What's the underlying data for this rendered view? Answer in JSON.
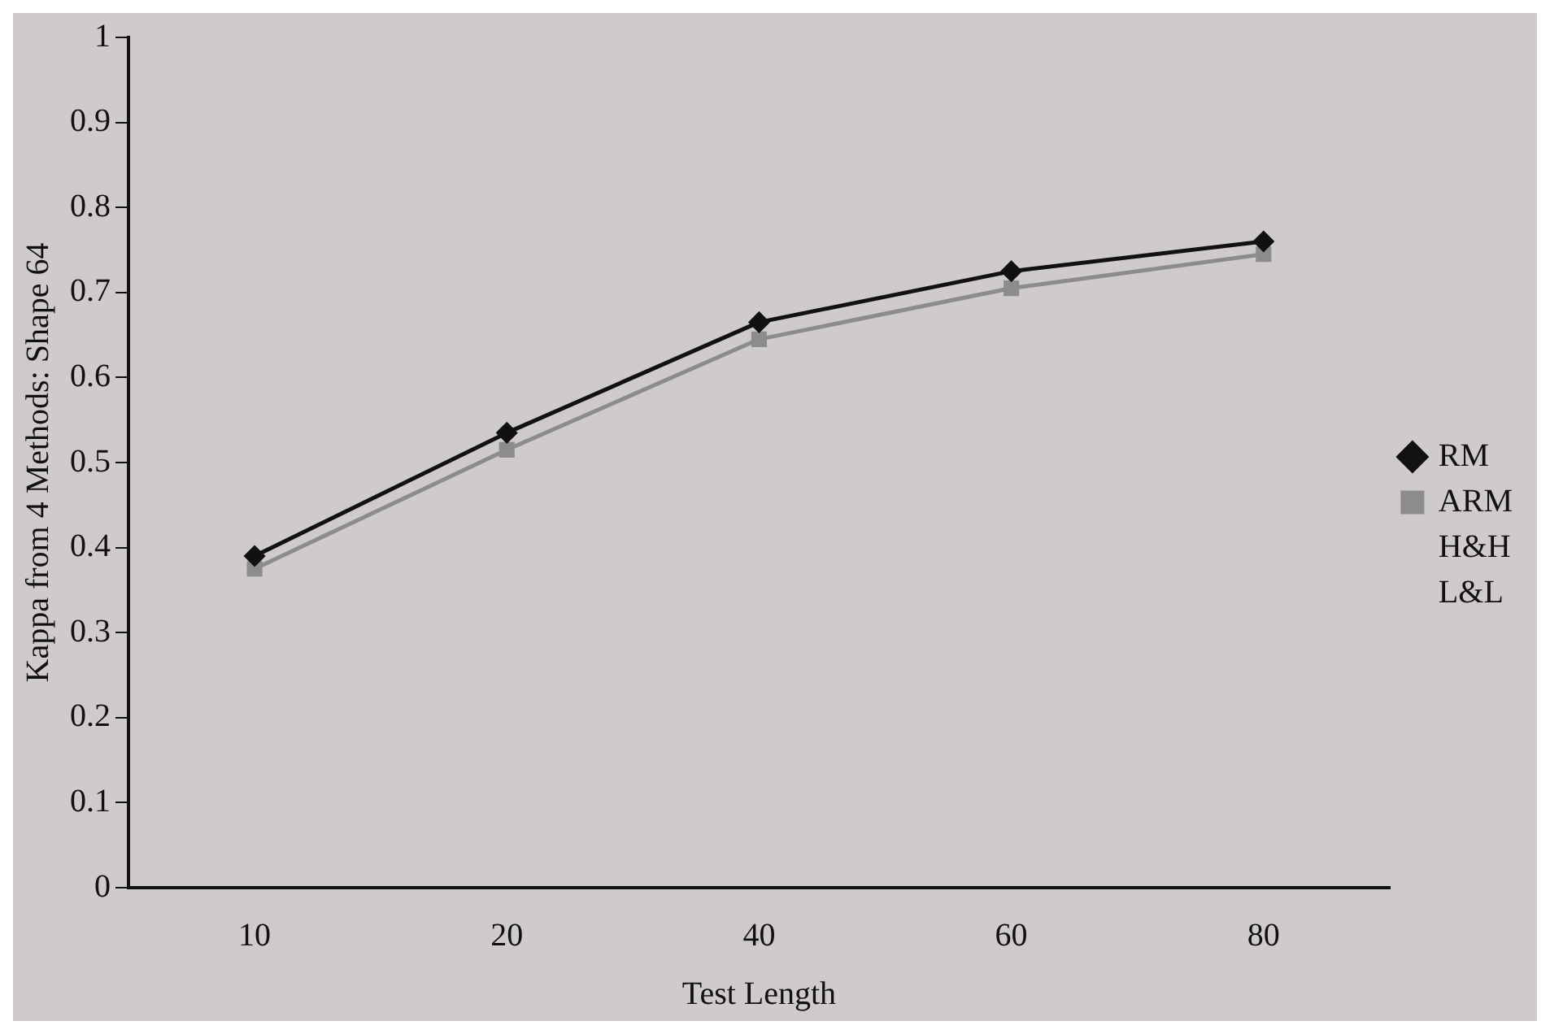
{
  "chart_data": {
    "type": "line",
    "xlabel": "Test Length",
    "ylabel": "Kappa from 4 Methods: Shape 64",
    "categories": [
      "10",
      "20",
      "40",
      "60",
      "80"
    ],
    "series": [
      {
        "name": "RM",
        "color": "#111111",
        "marker": "diamond",
        "values": [
          0.39,
          0.535,
          0.665,
          0.725,
          0.76
        ]
      },
      {
        "name": "ARM",
        "color": "#8c8c8c",
        "marker": "square",
        "values": [
          0.375,
          0.515,
          0.645,
          0.705,
          0.745
        ]
      },
      {
        "name": "H&H",
        "marker": "none",
        "values": [
          null,
          null,
          null,
          null,
          null
        ]
      },
      {
        "name": "L&L",
        "marker": "none",
        "values": [
          null,
          null,
          null,
          null,
          null
        ]
      }
    ],
    "ylim": [
      0,
      1
    ],
    "yticks": [
      0,
      0.1,
      0.2,
      0.3,
      0.4,
      0.5,
      0.6,
      0.7,
      0.8,
      0.9,
      1
    ],
    "grid": false,
    "legend": "right",
    "line_style": "solid"
  }
}
